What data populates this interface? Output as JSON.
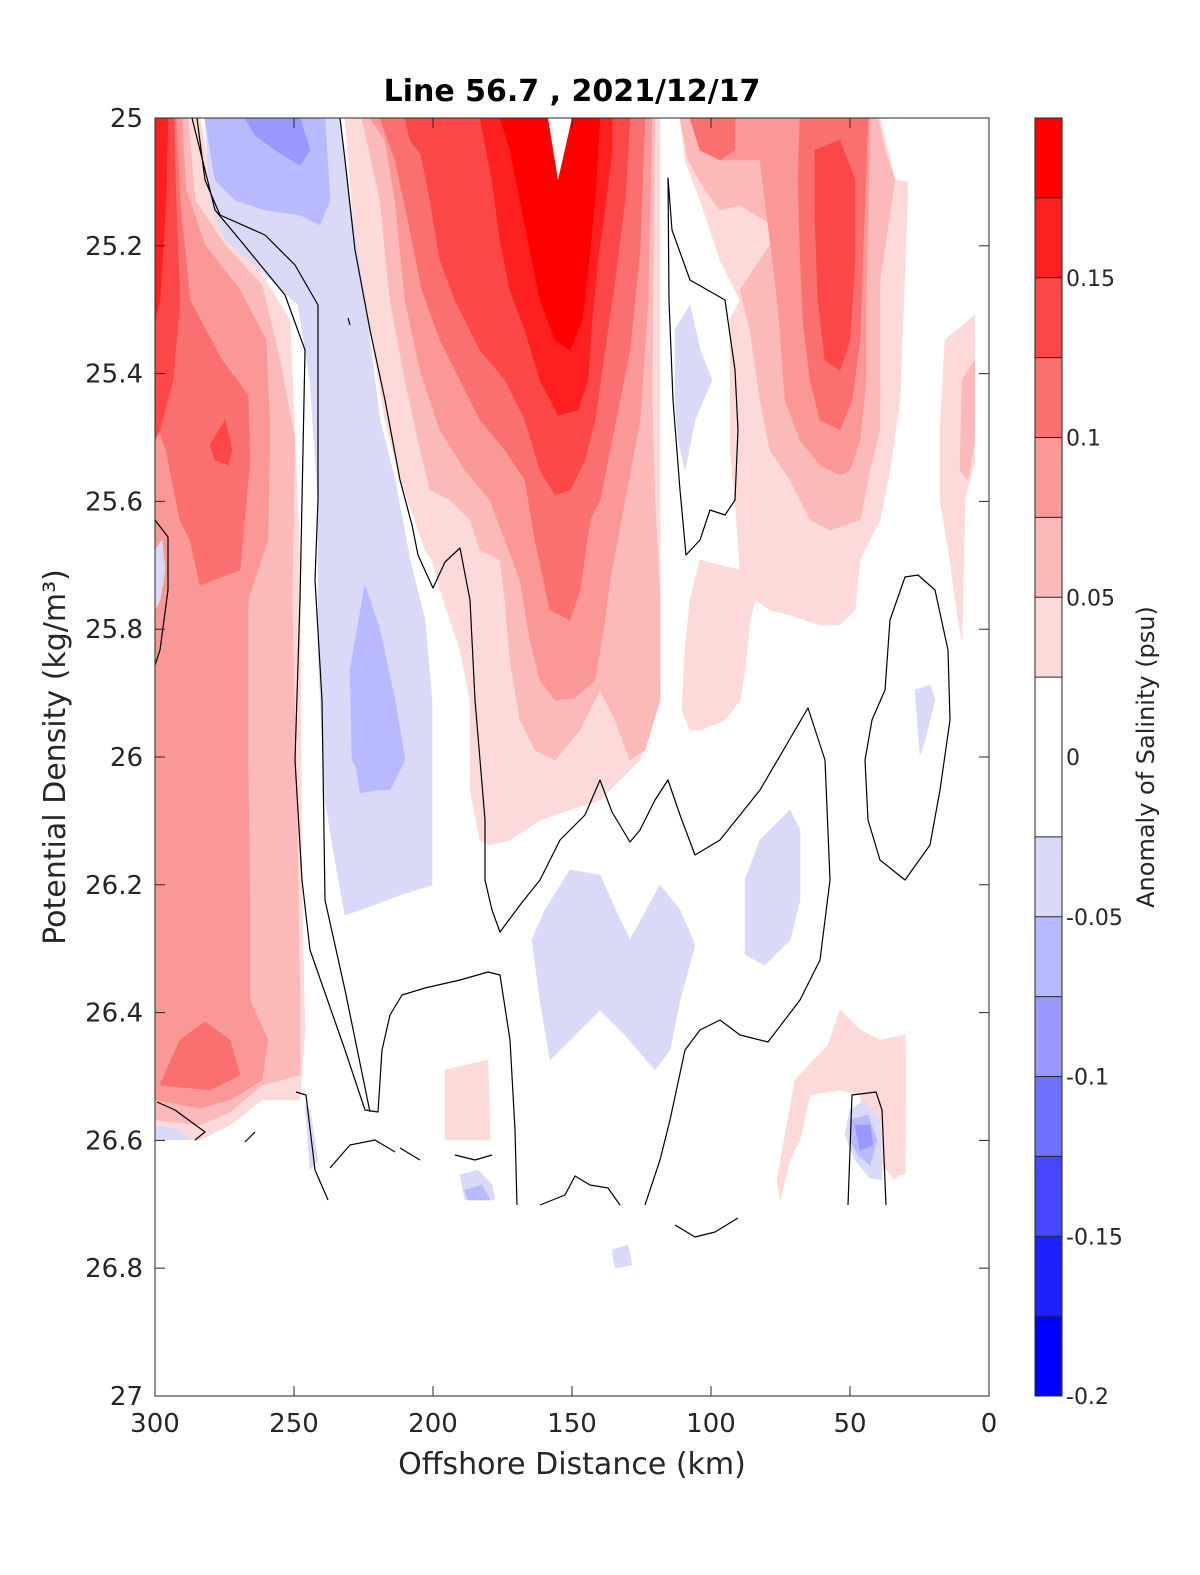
{
  "chart_data": {
    "type": "contour",
    "title": "Line 56.7 , 2021/12/17",
    "xlabel": "Offshore Distance (km)",
    "ylabel": "Potential Density (kg/m³)",
    "xlim": [
      300,
      0
    ],
    "ylim": [
      25,
      27
    ],
    "y_reversed": true,
    "x_reversed": true,
    "x_ticks": [
      "300",
      "250",
      "200",
      "150",
      "100",
      "50",
      "0"
    ],
    "x_tick_values": [
      300,
      250,
      200,
      150,
      100,
      50,
      0
    ],
    "y_ticks": [
      "25",
      "25.2",
      "25.4",
      "25.6",
      "25.8",
      "26",
      "26.2",
      "26.4",
      "26.6",
      "26.8",
      "27"
    ],
    "y_tick_values": [
      25,
      25.2,
      25.4,
      25.6,
      25.8,
      26,
      26.2,
      26.4,
      26.6,
      26.8,
      27
    ],
    "colorbar": {
      "label": "Anomaly of Salinity (psu)",
      "ticks": [
        "0.15",
        "0.1",
        "0.05",
        "0",
        "-0.05",
        "-0.1",
        "-0.15",
        "-0.2"
      ],
      "tick_values": [
        0.15,
        0.1,
        0.05,
        0,
        -0.05,
        -0.1,
        -0.15,
        -0.2
      ],
      "range": [
        -0.2,
        0.2
      ],
      "levels": [
        -0.2,
        -0.175,
        -0.15,
        -0.125,
        -0.1,
        -0.075,
        -0.05,
        -0.025,
        0.025,
        0.05,
        0.075,
        0.1,
        0.125,
        0.15,
        0.175,
        0.2
      ],
      "colors": [
        "#0000ff",
        "#2020ff",
        "#4747ff",
        "#7070ff",
        "#9898ff",
        "#b9b9ff",
        "#dadaf8",
        "#ffffff",
        "#fcdada",
        "#fbb9b9",
        "#fa9898",
        "#fa7070",
        "#fb4747",
        "#fe2020",
        "#ff0000"
      ]
    },
    "features": [
      {
        "name": "core-150km",
        "x": 155,
        "y": 25.3,
        "value": 0.19
      },
      {
        "name": "core-50km",
        "x": 55,
        "y": 25.15,
        "value": 0.13
      },
      {
        "name": "core-300km",
        "x": 298,
        "y": 25.3,
        "value": 0.15
      },
      {
        "name": "core-275km",
        "x": 275,
        "y": 25.5,
        "value": 0.09
      },
      {
        "name": "core-285km-deep",
        "x": 285,
        "y": 26.5,
        "value": 0.09
      },
      {
        "name": "fresh-250km",
        "x": 255,
        "y": 25.02,
        "value": -0.09
      },
      {
        "name": "fresh-225km",
        "x": 225,
        "y": 25.95,
        "value": -0.06
      },
      {
        "name": "fresh-45km-deep",
        "x": 45,
        "y": 26.6,
        "value": -0.08
      }
    ]
  },
  "colors": {
    "axis": "#262626",
    "contour_line": "#000000"
  }
}
